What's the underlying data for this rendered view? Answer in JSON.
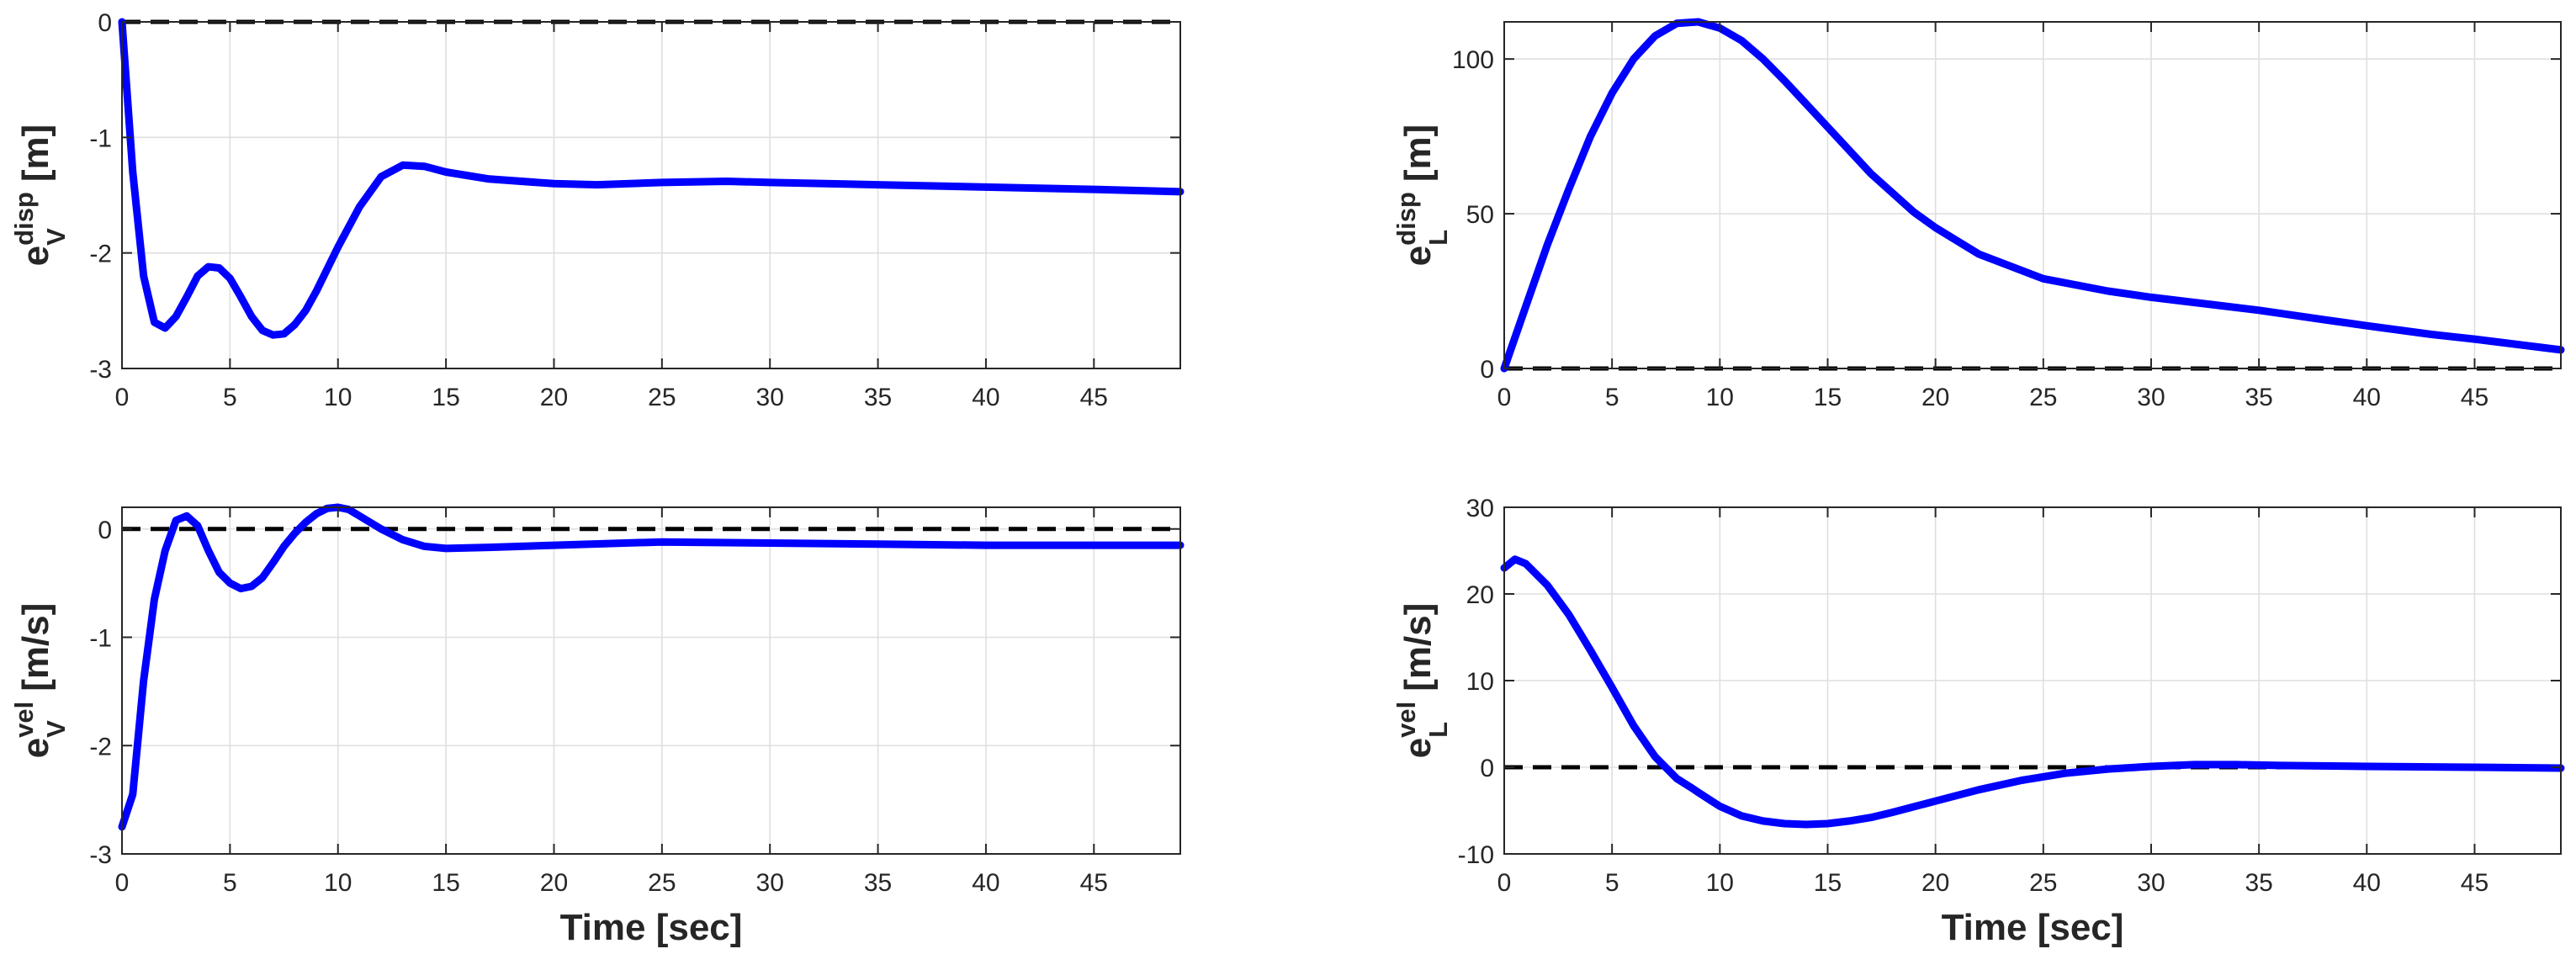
{
  "colors": {
    "series": "#0000ff",
    "reference": "#000000",
    "grid": "#dfdfdf",
    "axes": "#262626"
  },
  "chart_data": [
    {
      "type": "line",
      "ylabel": {
        "base": "e",
        "sup": "disp",
        "sub": "V",
        "unit": "[m]"
      },
      "xlabel": "",
      "xlim": [
        0,
        49
      ],
      "ylim": [
        -3,
        0
      ],
      "xticks": [
        0,
        5,
        10,
        15,
        20,
        25,
        30,
        35,
        40,
        45
      ],
      "yticks": [
        -3,
        -2,
        -1,
        0
      ],
      "grid": true,
      "reference": {
        "y": 0,
        "style": "dashed"
      },
      "series": [
        {
          "x": [
            0,
            0.5,
            1,
            1.5,
            2,
            2.5,
            3,
            3.5,
            4,
            4.5,
            5,
            5.5,
            6,
            6.5,
            7,
            7.5,
            8,
            8.5,
            9,
            10,
            11,
            12,
            13,
            14,
            15,
            17,
            20,
            22,
            25,
            28,
            30,
            35,
            40,
            45,
            49
          ],
          "y": [
            0,
            -1.3,
            -2.2,
            -2.6,
            -2.65,
            -2.55,
            -2.38,
            -2.2,
            -2.12,
            -2.13,
            -2.22,
            -2.38,
            -2.55,
            -2.67,
            -2.71,
            -2.7,
            -2.62,
            -2.5,
            -2.33,
            -1.95,
            -1.6,
            -1.34,
            -1.24,
            -1.25,
            -1.3,
            -1.36,
            -1.4,
            -1.41,
            -1.39,
            -1.38,
            -1.39,
            -1.41,
            -1.43,
            -1.45,
            -1.47
          ]
        }
      ]
    },
    {
      "type": "line",
      "ylabel": {
        "base": "e",
        "sup": "disp",
        "sub": "L",
        "unit": "[m]"
      },
      "xlabel": "",
      "xlim": [
        0,
        49
      ],
      "ylim": [
        0,
        112
      ],
      "xticks": [
        0,
        5,
        10,
        15,
        20,
        25,
        30,
        35,
        40,
        45
      ],
      "yticks": [
        0,
        50,
        100
      ],
      "grid": true,
      "reference": {
        "y": 0,
        "style": "dashed"
      },
      "series": [
        {
          "x": [
            0,
            1,
            2,
            3,
            4,
            5,
            6,
            7,
            8,
            9,
            10,
            11,
            12,
            13,
            14,
            15,
            17,
            19,
            20,
            22,
            25,
            28,
            30,
            33,
            35,
            38,
            40,
            43,
            45,
            49
          ],
          "y": [
            0,
            20,
            40,
            58,
            75,
            89,
            100,
            107.5,
            111.5,
            112,
            110,
            106,
            100,
            93,
            85.5,
            78,
            63,
            50.5,
            45.5,
            37,
            29,
            25,
            23,
            20.5,
            18.8,
            15.8,
            13.8,
            11,
            9.5,
            6
          ]
        }
      ]
    },
    {
      "type": "line",
      "ylabel": {
        "base": "e",
        "sup": "vel",
        "sub": "V",
        "unit": "[m/s]"
      },
      "xlabel": "Time [sec]",
      "xlim": [
        0,
        49
      ],
      "ylim": [
        -3,
        0.2
      ],
      "xticks": [
        0,
        5,
        10,
        15,
        20,
        25,
        30,
        35,
        40,
        45
      ],
      "yticks": [
        -3,
        -2,
        -1,
        0
      ],
      "grid": true,
      "reference": {
        "y": 0,
        "style": "dashed"
      },
      "series": [
        {
          "x": [
            0,
            0.5,
            1,
            1.5,
            2,
            2.5,
            3,
            3.5,
            4,
            4.5,
            5,
            5.5,
            6,
            6.5,
            7,
            7.5,
            8,
            8.5,
            9,
            9.5,
            10,
            10.5,
            11,
            12,
            13,
            14,
            15,
            17,
            20,
            25,
            30,
            35,
            40,
            45,
            49
          ],
          "y": [
            -2.75,
            -2.45,
            -1.4,
            -0.65,
            -0.2,
            0.08,
            0.12,
            0.03,
            -0.2,
            -0.4,
            -0.5,
            -0.55,
            -0.53,
            -0.45,
            -0.31,
            -0.16,
            -0.04,
            0.06,
            0.14,
            0.19,
            0.2,
            0.18,
            0.12,
            0.0,
            -0.1,
            -0.16,
            -0.18,
            -0.17,
            -0.15,
            -0.12,
            -0.13,
            -0.14,
            -0.15,
            -0.15,
            -0.15
          ]
        }
      ]
    },
    {
      "type": "line",
      "ylabel": {
        "base": "e",
        "sup": "vel",
        "sub": "L",
        "unit": "[m/s]"
      },
      "xlabel": "Time [sec]",
      "xlim": [
        0,
        49
      ],
      "ylim": [
        -10,
        30
      ],
      "xticks": [
        0,
        5,
        10,
        15,
        20,
        25,
        30,
        35,
        40,
        45
      ],
      "yticks": [
        -10,
        0,
        10,
        20,
        30
      ],
      "grid": true,
      "reference": {
        "y": 0,
        "style": "dashed"
      },
      "series": [
        {
          "x": [
            0,
            0.5,
            1,
            2,
            3,
            4,
            5,
            6,
            7,
            8,
            8.7,
            9,
            10,
            11,
            12,
            13,
            14,
            15,
            16,
            17,
            18,
            20,
            22,
            24,
            26,
            28,
            30,
            32,
            34,
            36,
            40,
            45,
            49
          ],
          "y": [
            23,
            24,
            23.5,
            21,
            17.6,
            13.5,
            9.2,
            4.8,
            1.2,
            -1.3,
            -2.4,
            -2.9,
            -4.5,
            -5.6,
            -6.2,
            -6.5,
            -6.6,
            -6.5,
            -6.2,
            -5.8,
            -5.2,
            -3.9,
            -2.6,
            -1.5,
            -0.7,
            -0.2,
            0.1,
            0.3,
            0.3,
            0.2,
            0.1,
            0.0,
            -0.1
          ]
        }
      ]
    }
  ]
}
